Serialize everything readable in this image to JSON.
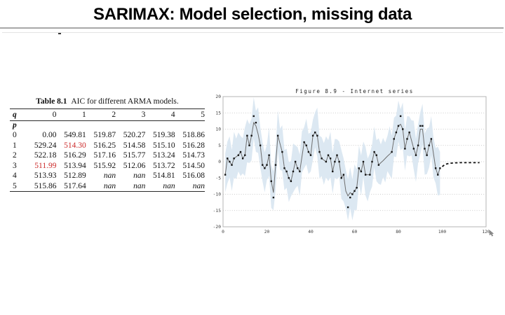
{
  "slide": {
    "title": "SARIMAX: Model selection, missing data",
    "stray_mark": "-"
  },
  "table": {
    "caption_label": "Table 8.1",
    "caption_text": "AIC for different ARMA models.",
    "col_header": "q",
    "row_header": "p",
    "columns": [
      "0",
      "1",
      "2",
      "3",
      "4",
      "5"
    ],
    "rows": [
      {
        "p": "0",
        "values": [
          "0.00",
          "549.81",
          "519.87",
          "520.27",
          "519.38",
          "518.86"
        ]
      },
      {
        "p": "1",
        "values": [
          "529.24",
          "514.30",
          "516.25",
          "514.58",
          "515.10",
          "516.28"
        ]
      },
      {
        "p": "2",
        "values": [
          "522.18",
          "516.29",
          "517.16",
          "515.77",
          "513.24",
          "514.73"
        ]
      },
      {
        "p": "3",
        "values": [
          "511.99",
          "513.94",
          "515.92",
          "512.06",
          "513.72",
          "514.50"
        ]
      },
      {
        "p": "4",
        "values": [
          "513.93",
          "512.89",
          "nan",
          "nan",
          "514.81",
          "516.08"
        ]
      },
      {
        "p": "5",
        "values": [
          "515.86",
          "517.64",
          "nan",
          "nan",
          "nan",
          "nan"
        ]
      }
    ],
    "highlight_cells": [
      {
        "row": 1,
        "col": 1
      },
      {
        "row": 3,
        "col": 0
      }
    ],
    "highlight_color": "#cc2b2b"
  },
  "chart_data": {
    "type": "line",
    "title": "Figure 8.9 - Internet series",
    "xlabel": "",
    "ylabel": "",
    "xlim": [
      0,
      120
    ],
    "ylim": [
      -20,
      20
    ],
    "x_ticks": [
      "0",
      "20",
      "40",
      "60",
      "80",
      "100",
      "120"
    ],
    "y_ticks": [
      "20",
      "15",
      "10",
      "5",
      "0",
      "-5",
      "-10",
      "-15",
      "-20"
    ],
    "grid": "horizontal-dotted",
    "legend": "none",
    "description": "Differenced internet-users series: black dots = observed data (gaps at missing points), gray line = smoothed estimate, light blue jagged area = confidence band, black dashed line = out-of-sample forecast",
    "observed_dots": [
      -4,
      1,
      0,
      -1,
      1,
      null,
      2,
      3,
      1,
      2,
      8,
      5,
      8,
      14,
      12,
      null,
      5,
      -1,
      -2,
      -1,
      2,
      -6,
      -11,
      -1,
      8,
      null,
      3,
      -2,
      -3,
      -5,
      -6,
      -3,
      0,
      -2,
      -3,
      null,
      6,
      5,
      3,
      2,
      8,
      9,
      8,
      3,
      1,
      null,
      0,
      2,
      1,
      -3,
      0,
      2,
      0,
      -5,
      -4,
      null,
      -14,
      -11,
      -10,
      -9,
      -8,
      -2,
      -3,
      0,
      -4,
      null,
      -4,
      0,
      3,
      2,
      -1,
      null,
      null,
      null,
      null,
      null,
      3,
      7,
      9,
      11,
      14,
      10,
      4,
      7,
      9,
      null,
      4,
      2,
      5,
      11,
      11,
      4,
      2,
      5,
      7,
      null,
      -2,
      -4,
      -2
    ],
    "smoothed_line": [
      -4,
      1,
      0,
      -1,
      1,
      1.5,
      2,
      3,
      1,
      2,
      8,
      5,
      8,
      12,
      11,
      8.5,
      5,
      -1,
      -2,
      -1,
      2,
      -6,
      -9.5,
      -1,
      8,
      5.5,
      3,
      -2,
      -3,
      -5,
      -6,
      -3,
      0,
      -2,
      -3,
      1.5,
      6,
      5,
      3,
      2,
      8,
      9,
      8,
      3,
      1,
      0.5,
      0,
      2,
      1,
      -3,
      0,
      2,
      0,
      -5,
      -4,
      -9,
      -10.5,
      -9.5,
      -10,
      -9,
      -8,
      -2,
      -3,
      0,
      -4,
      -4,
      -4,
      0,
      3,
      2,
      -1,
      -0.3,
      0.3,
      1,
      1.7,
      2.3,
      3,
      7,
      9,
      11,
      11.5,
      10,
      4,
      7,
      9,
      6.5,
      4,
      2,
      5,
      10,
      10,
      4,
      2,
      5,
      7,
      2.5,
      -2,
      -4,
      -2
    ],
    "missing_time_indices": [
      6,
      16,
      26,
      36,
      46,
      56,
      66,
      72,
      73,
      74,
      75,
      76,
      86,
      96
    ],
    "band_halfwidth_upper_cycle": [
      6.5,
      5.2,
      7.8,
      4.6,
      8.2,
      5.6,
      7.0,
      4.9,
      6.2,
      8.6,
      5.0
    ],
    "band_halfwidth_lower_cycle": [
      5.4,
      7.6,
      4.8,
      8.0,
      5.8,
      6.8,
      5.0,
      7.4,
      4.6,
      6.4,
      8.2
    ],
    "forecast": {
      "x_start": 100,
      "values": [
        -1.5,
        -1.0,
        -0.7,
        -0.55,
        -0.45,
        -0.4,
        -0.35,
        -0.35,
        -0.3,
        -0.3,
        -0.3,
        -0.3,
        -0.3,
        -0.3,
        -0.3,
        -0.3,
        -0.3,
        -0.3
      ]
    },
    "colors": {
      "band": "#dce8f2",
      "line": "#6e6e6e",
      "dots": "#141414",
      "forecast": "#111111",
      "grid": "#bcbcbc",
      "border": "#b4b4b4",
      "tick_text": "#3c3c3c",
      "title_text": "#222222"
    }
  }
}
